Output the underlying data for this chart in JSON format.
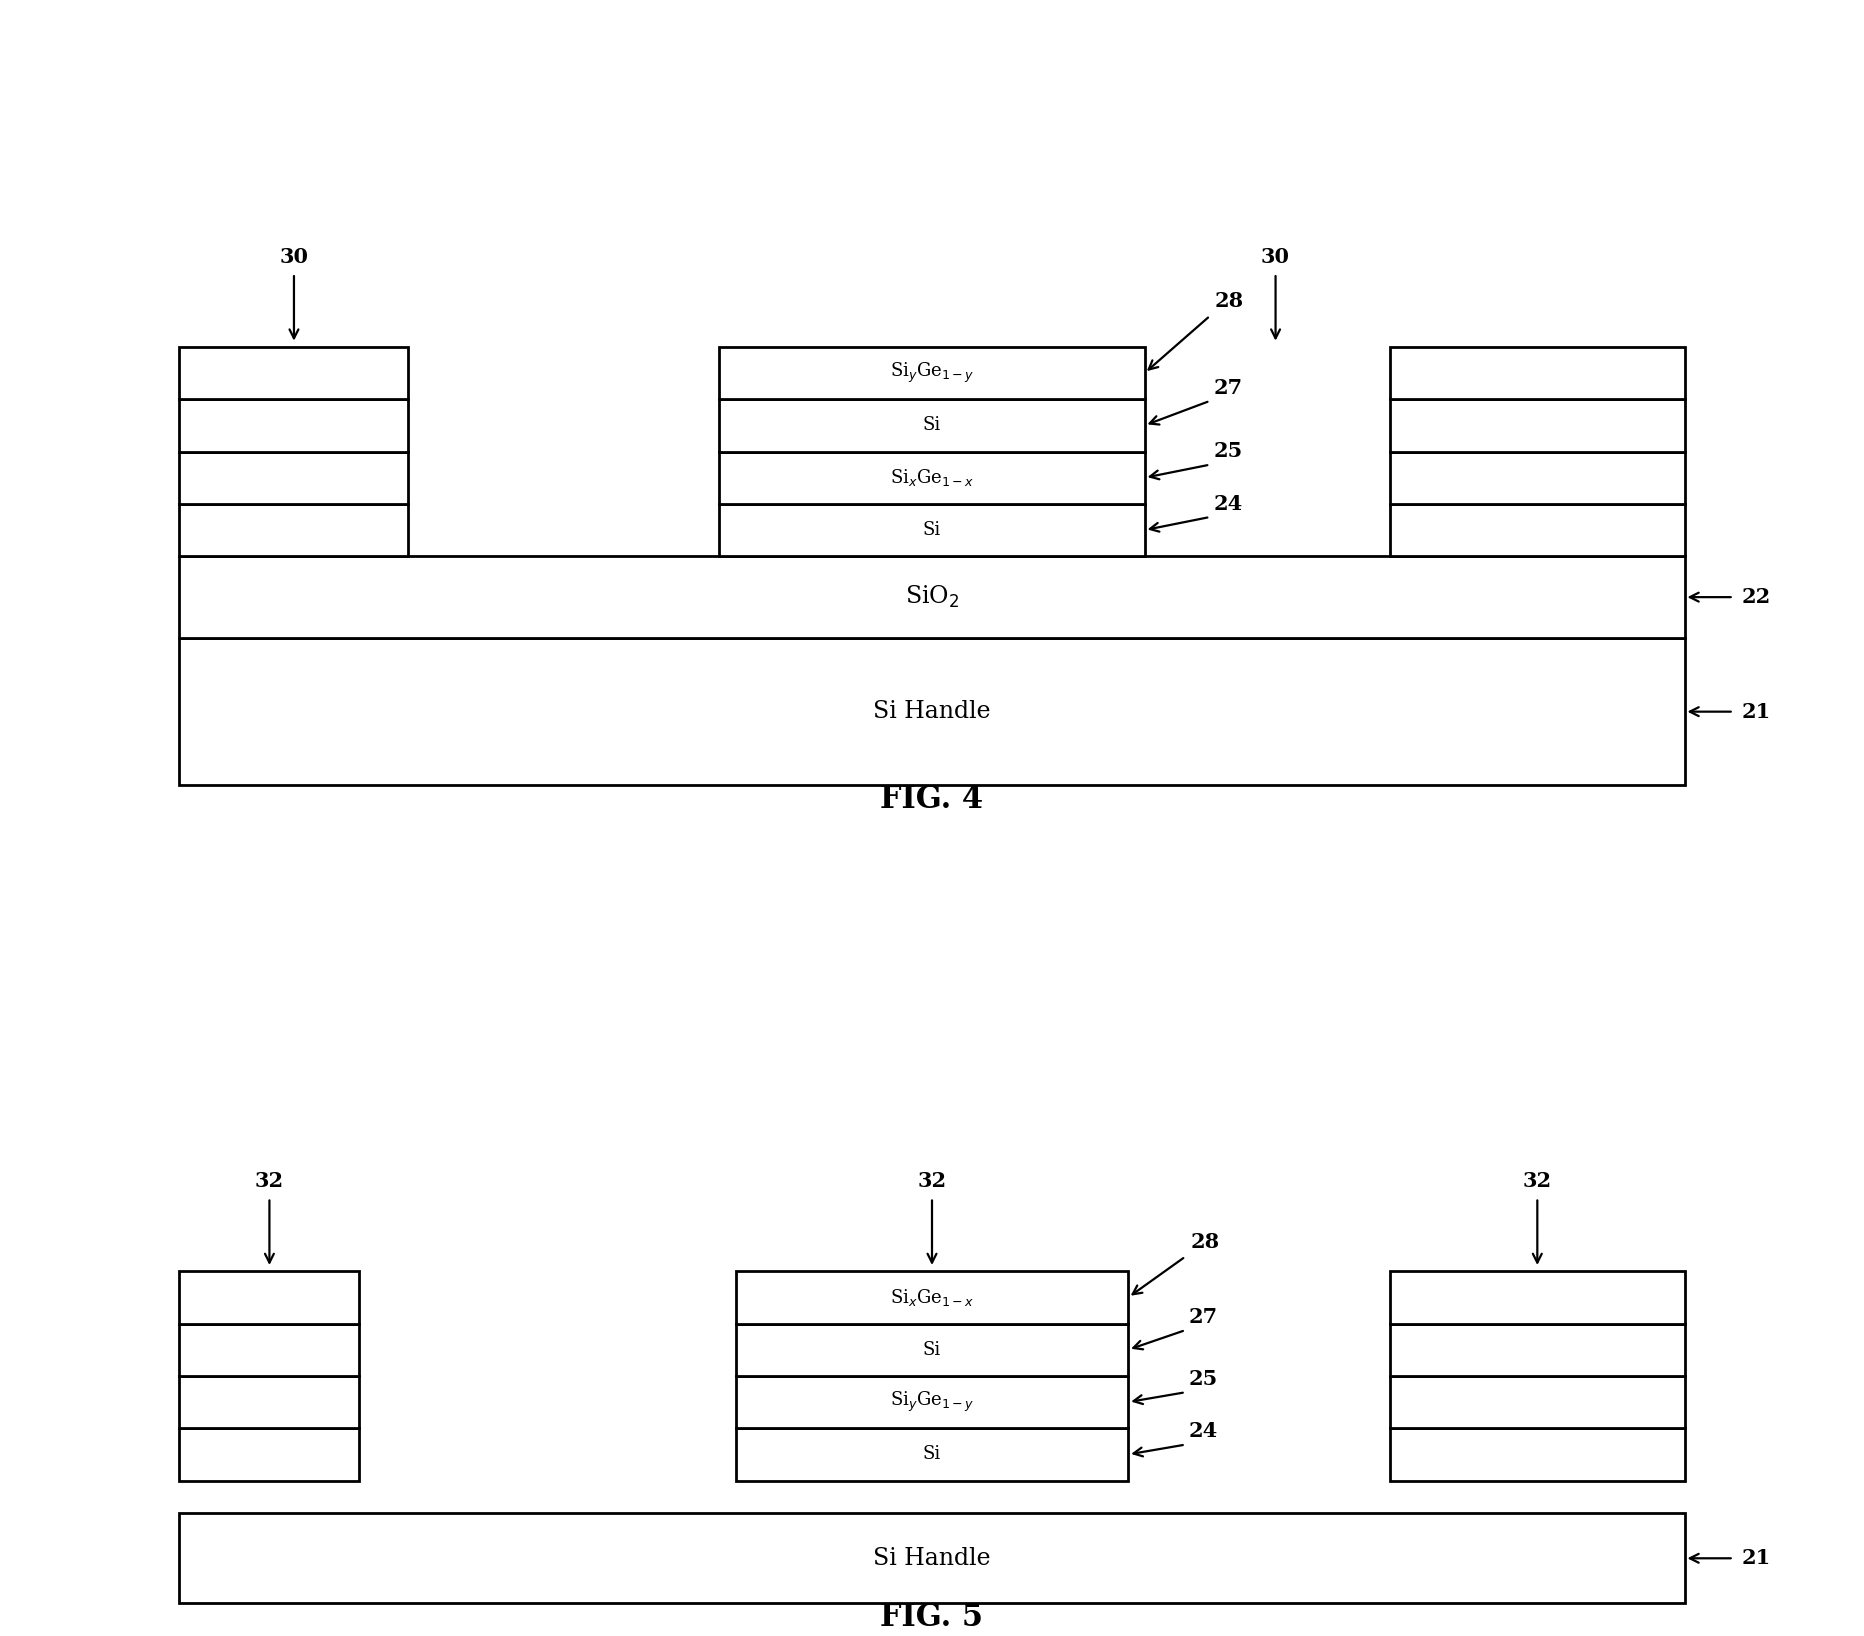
{
  "fig4": {
    "title": "FIG. 4",
    "layers_center": [
      {
        "label_display": "Si$_y$Ge$_{1-y}$",
        "ref": "28"
      },
      {
        "label_display": "Si",
        "ref": "27"
      },
      {
        "label_display": "Si$_x$Ge$_{1-x}$",
        "ref": "25"
      },
      {
        "label_display": "Si",
        "ref": "24"
      }
    ],
    "sio2_label": "SiO$_2$",
    "sio2_ref": "22",
    "handle_label": "Si Handle",
    "handle_ref": "21",
    "arrow_label": "30"
  },
  "fig5": {
    "title": "FIG. 5",
    "layers_center": [
      {
        "label_display": "Si$_x$Ge$_{1-x}$",
        "ref": "28"
      },
      {
        "label_display": "Si",
        "ref": "27"
      },
      {
        "label_display": "Si$_y$Ge$_{1-y}$",
        "ref": "25"
      },
      {
        "label_display": "Si",
        "ref": "24"
      }
    ],
    "handle_label": "Si Handle",
    "handle_ref": "21",
    "arrow_label": "32"
  },
  "linewidth": 2.0
}
